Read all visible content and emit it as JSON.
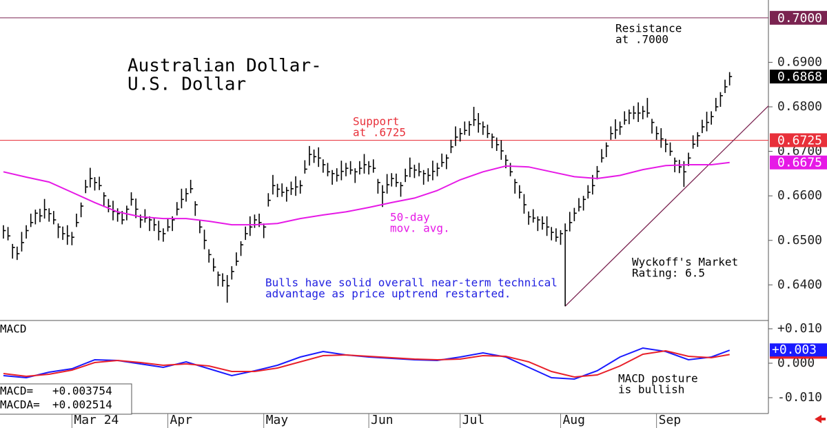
{
  "chart_data": [
    {
      "type": "ohlc",
      "title": [
        "Australian Dollar-",
        "U.S. Dollar"
      ],
      "xlim": [
        -0.75,
        167.5
      ],
      "ylim": [
        0.632,
        0.704
      ],
      "yticks": [
        {
          "value": 0.69,
          "label": "0.6900"
        },
        {
          "value": 0.68,
          "label": "0.6800"
        },
        {
          "value": 0.67,
          "label": "0.6700"
        },
        {
          "value": 0.66,
          "label": "0.6600"
        },
        {
          "value": 0.65,
          "label": "0.6500"
        },
        {
          "value": 0.64,
          "label": "0.6400"
        }
      ],
      "series": [
        {
          "type": "ohlc",
          "color": "#000000",
          "last_label": "0.6868",
          "x": [
            0,
            1,
            2,
            3,
            4,
            5,
            6,
            7,
            8,
            9,
            10,
            11,
            12,
            13,
            14,
            15,
            16,
            17,
            18,
            19,
            20,
            21,
            22,
            23,
            24,
            25,
            26,
            27,
            28,
            29,
            30,
            31,
            32,
            33,
            34,
            35,
            36,
            37,
            38,
            39,
            40,
            41,
            42,
            43,
            44,
            45,
            46,
            47,
            48,
            49,
            50,
            51,
            52,
            53,
            54,
            55,
            56,
            57,
            58,
            59,
            60,
            61,
            62,
            63,
            64,
            65,
            66,
            67,
            68,
            69,
            70,
            71,
            72,
            73,
            74,
            75,
            76,
            77,
            78,
            79,
            80,
            81,
            82,
            83,
            84,
            85,
            86,
            87,
            88,
            89,
            90,
            91,
            92,
            93,
            94,
            95,
            96,
            97,
            98,
            99,
            100,
            101,
            102,
            103,
            104,
            105,
            106,
            107,
            108,
            109,
            110,
            111,
            112,
            113,
            114,
            115,
            116,
            117,
            118,
            119,
            120,
            121,
            122,
            123,
            124,
            125,
            126,
            127,
            128,
            129,
            130,
            131,
            132,
            133,
            134,
            135,
            136,
            137,
            138,
            139,
            140,
            141,
            142,
            143,
            144,
            145,
            146,
            147,
            148,
            149,
            150,
            151,
            152,
            153,
            154,
            155,
            156,
            157,
            158,
            159
          ],
          "high": [
            0.6534,
            0.653,
            0.6492,
            0.6486,
            0.6519,
            0.6534,
            0.656,
            0.6569,
            0.6571,
            0.6593,
            0.6572,
            0.6566,
            0.6538,
            0.6531,
            0.6534,
            0.6519,
            0.656,
            0.6585,
            0.6636,
            0.6663,
            0.6642,
            0.6643,
            0.6608,
            0.6593,
            0.6589,
            0.6572,
            0.6566,
            0.6578,
            0.6608,
            0.6594,
            0.6558,
            0.657,
            0.6554,
            0.6551,
            0.6544,
            0.6527,
            0.655,
            0.6554,
            0.6586,
            0.6616,
            0.6617,
            0.6636,
            0.6588,
            0.6546,
            0.6524,
            0.648,
            0.646,
            0.643,
            0.6426,
            0.6422,
            0.6442,
            0.6473,
            0.6498,
            0.6531,
            0.6554,
            0.6558,
            0.656,
            0.6538,
            0.6606,
            0.6647,
            0.6627,
            0.6628,
            0.662,
            0.6632,
            0.6644,
            0.6635,
            0.668,
            0.6712,
            0.6704,
            0.6709,
            0.6682,
            0.6674,
            0.6658,
            0.6662,
            0.6679,
            0.6674,
            0.6678,
            0.6662,
            0.6678,
            0.6694,
            0.6678,
            0.6682,
            0.6638,
            0.6624,
            0.6649,
            0.6651,
            0.665,
            0.6631,
            0.6661,
            0.6686,
            0.667,
            0.6674,
            0.6658,
            0.6662,
            0.6679,
            0.6674,
            0.6695,
            0.6693,
            0.6726,
            0.6756,
            0.6752,
            0.6767,
            0.6768,
            0.68,
            0.6786,
            0.6767,
            0.676,
            0.674,
            0.6731,
            0.6725,
            0.6692,
            0.6674,
            0.6638,
            0.6624,
            0.6604,
            0.6565,
            0.657,
            0.6554,
            0.6554,
            0.6554,
            0.653,
            0.6527,
            0.6523,
            0.6538,
            0.6564,
            0.6573,
            0.6595,
            0.66,
            0.6624,
            0.6647,
            0.6667,
            0.6705,
            0.672,
            0.6756,
            0.6772,
            0.6767,
            0.679,
            0.6794,
            0.6802,
            0.681,
            0.6802,
            0.682,
            0.6773,
            0.6756,
            0.6752,
            0.6728,
            0.672,
            0.6686,
            0.6681,
            0.6678,
            0.6697,
            0.6736,
            0.6743,
            0.6771,
            0.6789,
            0.679,
            0.682,
            0.6833,
            0.6861,
            0.6878
          ],
          "low": [
            0.6504,
            0.65,
            0.6459,
            0.6456,
            0.6475,
            0.6504,
            0.653,
            0.6536,
            0.6541,
            0.6549,
            0.6542,
            0.6536,
            0.6505,
            0.6501,
            0.649,
            0.6489,
            0.653,
            0.6552,
            0.6606,
            0.6619,
            0.6612,
            0.6613,
            0.6575,
            0.6563,
            0.6545,
            0.6542,
            0.6536,
            0.6545,
            0.6578,
            0.655,
            0.6528,
            0.654,
            0.6521,
            0.6521,
            0.65,
            0.6497,
            0.652,
            0.6521,
            0.6556,
            0.6572,
            0.6587,
            0.6606,
            0.6555,
            0.6516,
            0.648,
            0.645,
            0.643,
            0.6397,
            0.6396,
            0.636,
            0.6412,
            0.6443,
            0.6465,
            0.6501,
            0.651,
            0.6528,
            0.653,
            0.6505,
            0.6576,
            0.6603,
            0.6597,
            0.6598,
            0.6587,
            0.6602,
            0.66,
            0.6605,
            0.665,
            0.6668,
            0.6674,
            0.6665,
            0.6652,
            0.6644,
            0.6625,
            0.6632,
            0.6635,
            0.6644,
            0.6648,
            0.6629,
            0.6648,
            0.665,
            0.6648,
            0.6652,
            0.6605,
            0.6575,
            0.6605,
            0.6621,
            0.662,
            0.6598,
            0.6631,
            0.6642,
            0.664,
            0.6644,
            0.6625,
            0.6632,
            0.6635,
            0.6644,
            0.6665,
            0.666,
            0.6696,
            0.6712,
            0.6722,
            0.6737,
            0.6735,
            0.6757,
            0.6742,
            0.6737,
            0.673,
            0.6707,
            0.6701,
            0.6681,
            0.6662,
            0.6644,
            0.6605,
            0.6594,
            0.656,
            0.6535,
            0.654,
            0.6521,
            0.6524,
            0.651,
            0.65,
            0.6497,
            0.649,
            0.6352,
            0.652,
            0.6543,
            0.6565,
            0.6567,
            0.6594,
            0.6603,
            0.6637,
            0.6675,
            0.6687,
            0.6726,
            0.6728,
            0.6737,
            0.676,
            0.6761,
            0.6772,
            0.6766,
            0.6772,
            0.6776,
            0.674,
            0.6726,
            0.6708,
            0.6698,
            0.669,
            0.6653,
            0.6651,
            0.662,
            0.6667,
            0.6706,
            0.671,
            0.6741,
            0.6745,
            0.676,
            0.679,
            0.68,
            0.6831,
            0.6848
          ],
          "close": [
            0.6522,
            0.651,
            0.6484,
            0.647,
            0.6495,
            0.6522,
            0.654,
            0.6561,
            0.6555,
            0.6569,
            0.656,
            0.6546,
            0.653,
            0.6515,
            0.651,
            0.6507,
            0.654,
            0.6577,
            0.662,
            0.6639,
            0.663,
            0.6623,
            0.66,
            0.6577,
            0.6565,
            0.656,
            0.6546,
            0.657,
            0.6592,
            0.657,
            0.6546,
            0.655,
            0.6546,
            0.6535,
            0.652,
            0.6515,
            0.653,
            0.6546,
            0.657,
            0.6592,
            0.6605,
            0.6616,
            0.658,
            0.653,
            0.65,
            0.6468,
            0.644,
            0.6422,
            0.641,
            0.6398,
            0.643,
            0.6453,
            0.649,
            0.6515,
            0.653,
            0.6546,
            0.654,
            0.653,
            0.659,
            0.6623,
            0.6615,
            0.6608,
            0.6612,
            0.6616,
            0.662,
            0.6623,
            0.666,
            0.6693,
            0.6688,
            0.6685,
            0.667,
            0.6654,
            0.665,
            0.6646,
            0.6655,
            0.6662,
            0.6658,
            0.6654,
            0.6662,
            0.667,
            0.6666,
            0.6662,
            0.663,
            0.6608,
            0.6625,
            0.6639,
            0.663,
            0.6623,
            0.6645,
            0.6662,
            0.6658,
            0.6654,
            0.665,
            0.6646,
            0.6655,
            0.6662,
            0.6675,
            0.6685,
            0.671,
            0.6732,
            0.674,
            0.6747,
            0.676,
            0.6771,
            0.6762,
            0.6755,
            0.674,
            0.6732,
            0.6715,
            0.6701,
            0.668,
            0.6654,
            0.663,
            0.6608,
            0.658,
            0.6553,
            0.655,
            0.6546,
            0.6538,
            0.653,
            0.6518,
            0.6507,
            0.6515,
            0.6522,
            0.654,
            0.6561,
            0.6575,
            0.6592,
            0.6608,
            0.6623,
            0.6655,
            0.6685,
            0.6712,
            0.674,
            0.6748,
            0.6755,
            0.677,
            0.6786,
            0.6786,
            0.6786,
            0.679,
            0.6786,
            0.6765,
            0.674,
            0.6728,
            0.6716,
            0.67,
            0.6678,
            0.6665,
            0.6654,
            0.6685,
            0.6716,
            0.6735,
            0.6755,
            0.6765,
            0.6778,
            0.68,
            0.6825,
            0.6845,
            0.6868
          ]
        },
        {
          "type": "line",
          "color": "#e619e6",
          "last_label": "0.6675",
          "x": [
            0,
            5,
            10,
            15,
            20,
            25,
            30,
            35,
            40,
            45,
            50,
            55,
            60,
            65,
            70,
            75,
            80,
            85,
            90,
            95,
            100,
            105,
            110,
            115,
            120,
            125,
            130,
            135,
            140,
            145,
            150,
            155,
            159
          ],
          "values": [
            0.6654,
            0.6642,
            0.6631,
            0.6608,
            0.6585,
            0.6564,
            0.6553,
            0.6549,
            0.6549,
            0.6543,
            0.6535,
            0.6535,
            0.6538,
            0.6549,
            0.6557,
            0.6564,
            0.6574,
            0.6585,
            0.6595,
            0.6612,
            0.6636,
            0.6654,
            0.6667,
            0.6665,
            0.6654,
            0.6643,
            0.6639,
            0.6646,
            0.6659,
            0.6668,
            0.667,
            0.667,
            0.6675
          ]
        }
      ],
      "levels": [
        {
          "value": 0.7,
          "label": "0.7000",
          "color": "#7a2350"
        },
        {
          "value": 0.6725,
          "label": "0.6725",
          "color": "#e8303a"
        }
      ],
      "trendline": {
        "x": [
          123,
          167.5
        ],
        "y": [
          0.6352,
          0.6802
        ],
        "color": "#7a2350"
      },
      "annotations": [
        {
          "lines": [
            "Resistance",
            "at .7000"
          ],
          "color": "#000000"
        },
        {
          "lines": [
            "Support",
            "at .6725"
          ],
          "color": "#e8303a"
        },
        {
          "lines": [
            "50-day",
            "mov. avg."
          ],
          "color": "#e619e6"
        },
        {
          "lines": [
            "Bulls have solid overall near-term technical",
            "advantage as price uptrend restarted."
          ],
          "color": "#1f1fe0"
        },
        {
          "lines": [
            "Wyckoff's Market",
            "Rating: 6.5"
          ],
          "color": "#000000"
        }
      ]
    },
    {
      "type": "line",
      "title": "MACD",
      "xlim": [
        -0.75,
        167.5
      ],
      "ylim": [
        -0.0146,
        0.0124
      ],
      "yticks": [
        {
          "value": 0.01,
          "label": "+0.010"
        },
        {
          "value": 0,
          "label": "0.000"
        },
        {
          "value": -0.01,
          "label": "-0.010"
        }
      ],
      "xticks": [
        {
          "value": 15,
          "label": "Mar 24"
        },
        {
          "value": 36,
          "label": "Apr"
        },
        {
          "value": 57,
          "label": "May"
        },
        {
          "value": 80,
          "label": "Jun"
        },
        {
          "value": 100,
          "label": "Jul"
        },
        {
          "value": 122,
          "label": "Aug"
        },
        {
          "value": 143,
          "label": "Sep"
        }
      ],
      "marker_label": "+0.003",
      "series": [
        {
          "name": "MACD=",
          "color": "#1a1aff",
          "last_label": "+0.003754",
          "x": [
            0,
            5,
            10,
            15,
            20,
            25,
            30,
            35,
            40,
            45,
            50,
            55,
            60,
            65,
            70,
            75,
            80,
            85,
            90,
            95,
            100,
            105,
            110,
            115,
            120,
            125,
            130,
            135,
            140,
            145,
            150,
            155,
            159
          ],
          "values": [
            -0.0036,
            -0.0042,
            -0.0026,
            -0.0016,
            0.001,
            0.0008,
            -0.0002,
            -0.0012,
            0.0004,
            -0.0016,
            -0.0036,
            -0.0022,
            -0.0006,
            0.0018,
            0.0034,
            0.0024,
            0.0018,
            0.0014,
            0.001,
            0.0008,
            0.0018,
            0.003,
            0.0018,
            -0.0012,
            -0.0042,
            -0.0046,
            -0.0022,
            0.0018,
            0.0044,
            0.0034,
            0.001,
            0.0018,
            0.003754
          ]
        },
        {
          "name": "MACDA=",
          "color": "#e8202a",
          "last_label": "+0.002514",
          "x": [
            0,
            5,
            10,
            15,
            20,
            25,
            30,
            35,
            40,
            45,
            50,
            55,
            60,
            65,
            70,
            75,
            80,
            85,
            90,
            95,
            100,
            105,
            110,
            115,
            120,
            125,
            130,
            135,
            140,
            145,
            150,
            155,
            159
          ],
          "values": [
            -0.003,
            -0.0038,
            -0.0032,
            -0.002,
            0.0002,
            0.0008,
            0.0002,
            -0.0006,
            -0.0002,
            -0.0008,
            -0.0024,
            -0.0024,
            -0.0014,
            0.0004,
            0.0022,
            0.0024,
            0.002,
            0.0016,
            0.0012,
            0.001,
            0.0012,
            0.0022,
            0.002,
            0.0004,
            -0.0024,
            -0.004,
            -0.0034,
            -0.0008,
            0.0026,
            0.0036,
            0.002,
            0.0016,
            0.002514
          ]
        }
      ],
      "annotations": [
        {
          "lines": [
            "MACD posture",
            "is bullish"
          ],
          "color": "#000000"
        }
      ]
    }
  ]
}
